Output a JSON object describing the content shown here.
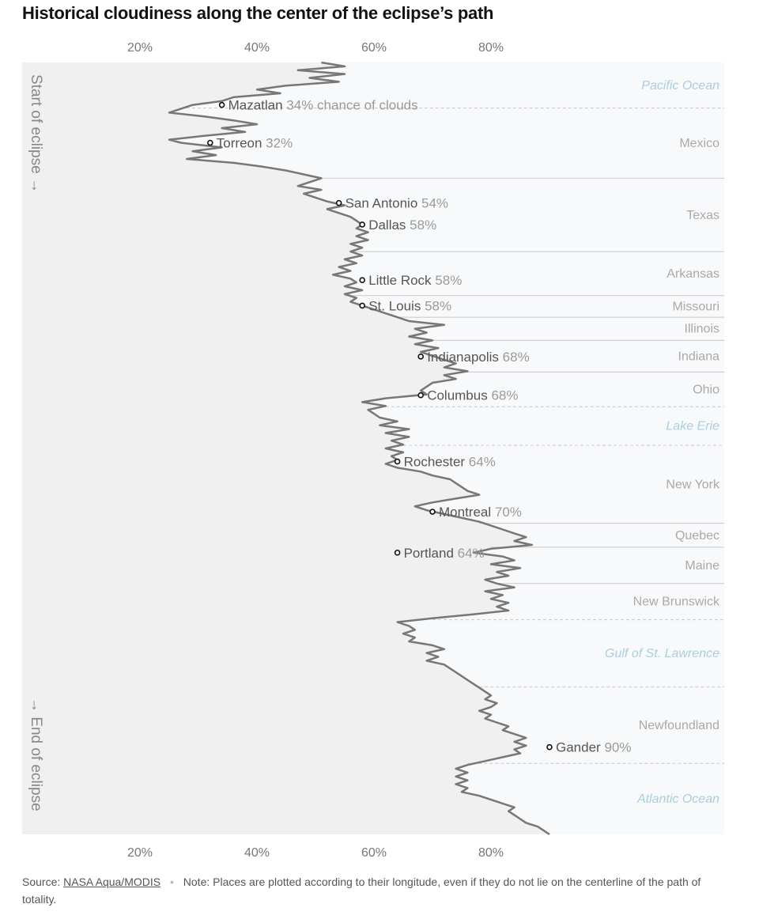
{
  "page": {
    "title": "Historical cloudiness along the center of the eclipse’s path"
  },
  "footer": {
    "source_label": "Source:",
    "source_link": "NASA Aqua/MODIS",
    "separator": "•",
    "note": "Note: Places are plotted according to their longitude, even if they do not lie on the centerline of the path of totality."
  },
  "colors": {
    "land_bg": "#f0f0f0",
    "water_bg": "#f8f9fb",
    "line": "#777777",
    "water_label": "#a9cfdc",
    "land_label": "#a9a9a9",
    "city_name": "#555555",
    "city_value": "#9a9a9a"
  },
  "chart_data": {
    "type": "line",
    "orientation": "vertical",
    "title": "Historical cloudiness along the center of the eclipse’s path",
    "xlabel": "",
    "ylabel": "",
    "xlim": [
      0,
      100
    ],
    "x_ticks": [
      {
        "value": 20,
        "label": "20%"
      },
      {
        "value": 40,
        "label": "40%"
      },
      {
        "value": 60,
        "label": "60%"
      },
      {
        "value": 80,
        "label": "80%"
      }
    ],
    "grid": false,
    "axis_annotations": {
      "start": "Start of eclipse →",
      "end": "→ End of eclipse"
    },
    "regions": [
      {
        "name": "Pacific Ocean",
        "water": true,
        "start": 0,
        "end": 0.059
      },
      {
        "name": "Mexico",
        "water": false,
        "start": 0.059,
        "end": 0.15
      },
      {
        "name": "Texas",
        "water": false,
        "start": 0.15,
        "end": 0.245
      },
      {
        "name": "Arkansas",
        "water": false,
        "start": 0.245,
        "end": 0.302
      },
      {
        "name": "Missouri",
        "water": false,
        "start": 0.302,
        "end": 0.33
      },
      {
        "name": "Illinois",
        "water": false,
        "start": 0.33,
        "end": 0.36
      },
      {
        "name": "Indiana",
        "water": false,
        "start": 0.36,
        "end": 0.401
      },
      {
        "name": "Ohio",
        "water": false,
        "start": 0.401,
        "end": 0.446
      },
      {
        "name": "Lake Erie",
        "water": true,
        "start": 0.446,
        "end": 0.496
      },
      {
        "name": "New York",
        "water": false,
        "start": 0.496,
        "end": 0.597
      },
      {
        "name": "Quebec",
        "water": false,
        "start": 0.597,
        "end": 0.628
      },
      {
        "name": "Maine",
        "water": false,
        "start": 0.628,
        "end": 0.675
      },
      {
        "name": "New Brunswick",
        "water": false,
        "start": 0.675,
        "end": 0.722
      },
      {
        "name": "Gulf of St. Lawrence",
        "water": true,
        "start": 0.722,
        "end": 0.809
      },
      {
        "name": "Newfoundland",
        "water": false,
        "start": 0.809,
        "end": 0.908
      },
      {
        "name": "Atlantic Ocean",
        "water": true,
        "start": 0.908,
        "end": 1.0
      }
    ],
    "cities": [
      {
        "name": "Mazatlan",
        "value": 34,
        "value_label": "34% chance of clouds",
        "pos": 0.055
      },
      {
        "name": "Torreon",
        "value": 32,
        "value_label": "32%",
        "pos": 0.104
      },
      {
        "name": "San Antonio",
        "value": 54,
        "value_label": "54%",
        "pos": 0.182
      },
      {
        "name": "Dallas",
        "value": 58,
        "value_label": "58%",
        "pos": 0.21
      },
      {
        "name": "Little Rock",
        "value": 58,
        "value_label": "58%",
        "pos": 0.282
      },
      {
        "name": "St. Louis",
        "value": 58,
        "value_label": "58%",
        "pos": 0.315
      },
      {
        "name": "Indianapolis",
        "value": 68,
        "value_label": "68%",
        "pos": 0.381
      },
      {
        "name": "Columbus",
        "value": 68,
        "value_label": "68%",
        "pos": 0.431
      },
      {
        "name": "Rochester",
        "value": 64,
        "value_label": "64%",
        "pos": 0.517
      },
      {
        "name": "Montreal",
        "value": 70,
        "value_label": "70%",
        "pos": 0.582
      },
      {
        "name": "Portland",
        "value": 64,
        "value_label": "64%",
        "pos": 0.635
      },
      {
        "name": "Gander",
        "value": 90,
        "value_label": "90%",
        "pos": 0.887
      }
    ],
    "series": [
      {
        "points": [
          [
            0.0,
            51
          ],
          [
            0.005,
            55
          ],
          [
            0.01,
            47
          ],
          [
            0.015,
            55
          ],
          [
            0.02,
            49
          ],
          [
            0.025,
            54
          ],
          [
            0.03,
            45
          ],
          [
            0.035,
            40
          ],
          [
            0.04,
            44
          ],
          [
            0.045,
            36
          ],
          [
            0.05,
            34
          ],
          [
            0.055,
            29
          ],
          [
            0.06,
            27
          ],
          [
            0.065,
            25
          ],
          [
            0.07,
            31
          ],
          [
            0.075,
            36
          ],
          [
            0.08,
            40
          ],
          [
            0.085,
            34
          ],
          [
            0.09,
            38
          ],
          [
            0.095,
            31
          ],
          [
            0.1,
            25
          ],
          [
            0.104,
            27
          ],
          [
            0.11,
            34
          ],
          [
            0.115,
            29
          ],
          [
            0.12,
            33
          ],
          [
            0.125,
            28
          ],
          [
            0.13,
            36
          ],
          [
            0.135,
            41
          ],
          [
            0.14,
            45
          ],
          [
            0.145,
            48
          ],
          [
            0.15,
            51
          ],
          [
            0.155,
            49
          ],
          [
            0.16,
            47
          ],
          [
            0.165,
            51
          ],
          [
            0.17,
            48
          ],
          [
            0.175,
            50
          ],
          [
            0.18,
            52
          ],
          [
            0.185,
            55
          ],
          [
            0.19,
            52
          ],
          [
            0.195,
            54
          ],
          [
            0.2,
            56
          ],
          [
            0.205,
            57
          ],
          [
            0.21,
            58
          ],
          [
            0.215,
            57
          ],
          [
            0.22,
            59
          ],
          [
            0.225,
            57
          ],
          [
            0.23,
            59
          ],
          [
            0.235,
            56
          ],
          [
            0.24,
            58
          ],
          [
            0.245,
            56
          ],
          [
            0.25,
            58
          ],
          [
            0.255,
            55
          ],
          [
            0.26,
            57
          ],
          [
            0.265,
            54
          ],
          [
            0.27,
            56
          ],
          [
            0.275,
            53
          ],
          [
            0.28,
            56
          ],
          [
            0.285,
            57
          ],
          [
            0.29,
            55
          ],
          [
            0.295,
            58
          ],
          [
            0.3,
            55
          ],
          [
            0.305,
            57
          ],
          [
            0.31,
            56
          ],
          [
            0.315,
            58
          ],
          [
            0.32,
            60
          ],
          [
            0.325,
            62
          ],
          [
            0.33,
            64
          ],
          [
            0.335,
            66
          ],
          [
            0.34,
            72
          ],
          [
            0.345,
            67
          ],
          [
            0.35,
            69
          ],
          [
            0.355,
            66
          ],
          [
            0.36,
            70
          ],
          [
            0.365,
            67
          ],
          [
            0.37,
            71
          ],
          [
            0.375,
            68
          ],
          [
            0.38,
            70
          ],
          [
            0.385,
            72
          ],
          [
            0.39,
            74
          ],
          [
            0.395,
            72
          ],
          [
            0.4,
            76
          ],
          [
            0.405,
            72
          ],
          [
            0.41,
            74
          ],
          [
            0.415,
            70
          ],
          [
            0.42,
            69
          ],
          [
            0.425,
            68
          ],
          [
            0.43,
            69
          ],
          [
            0.435,
            62
          ],
          [
            0.44,
            58
          ],
          [
            0.445,
            62
          ],
          [
            0.45,
            59
          ],
          [
            0.455,
            60
          ],
          [
            0.46,
            61
          ],
          [
            0.465,
            64
          ],
          [
            0.47,
            61
          ],
          [
            0.475,
            66
          ],
          [
            0.48,
            62
          ],
          [
            0.485,
            66
          ],
          [
            0.49,
            63
          ],
          [
            0.495,
            65
          ],
          [
            0.5,
            62
          ],
          [
            0.505,
            65
          ],
          [
            0.51,
            63
          ],
          [
            0.515,
            64
          ],
          [
            0.52,
            62
          ],
          [
            0.525,
            64
          ],
          [
            0.53,
            68
          ],
          [
            0.535,
            70
          ],
          [
            0.54,
            73
          ],
          [
            0.545,
            74
          ],
          [
            0.55,
            75
          ],
          [
            0.555,
            76
          ],
          [
            0.56,
            78
          ],
          [
            0.565,
            74
          ],
          [
            0.57,
            70
          ],
          [
            0.575,
            67
          ],
          [
            0.58,
            69
          ],
          [
            0.585,
            72
          ],
          [
            0.59,
            75
          ],
          [
            0.595,
            78
          ],
          [
            0.6,
            80
          ],
          [
            0.605,
            82
          ],
          [
            0.61,
            84
          ],
          [
            0.615,
            86
          ],
          [
            0.62,
            84
          ],
          [
            0.625,
            87
          ],
          [
            0.63,
            80
          ],
          [
            0.635,
            77
          ],
          [
            0.64,
            82
          ],
          [
            0.645,
            84
          ],
          [
            0.65,
            80
          ],
          [
            0.655,
            85
          ],
          [
            0.66,
            81
          ],
          [
            0.665,
            83
          ],
          [
            0.67,
            79
          ],
          [
            0.675,
            81
          ],
          [
            0.68,
            84
          ],
          [
            0.685,
            79
          ],
          [
            0.69,
            82
          ],
          [
            0.695,
            80
          ],
          [
            0.7,
            83
          ],
          [
            0.705,
            81
          ],
          [
            0.71,
            83
          ],
          [
            0.715,
            77
          ],
          [
            0.72,
            70
          ],
          [
            0.725,
            64
          ],
          [
            0.73,
            66
          ],
          [
            0.735,
            67
          ],
          [
            0.74,
            65
          ],
          [
            0.745,
            67
          ],
          [
            0.75,
            66
          ],
          [
            0.755,
            70
          ],
          [
            0.76,
            72
          ],
          [
            0.765,
            69
          ],
          [
            0.77,
            71
          ],
          [
            0.775,
            69
          ],
          [
            0.78,
            72
          ],
          [
            0.785,
            73
          ],
          [
            0.79,
            74
          ],
          [
            0.795,
            75
          ],
          [
            0.8,
            76
          ],
          [
            0.805,
            77
          ],
          [
            0.81,
            78
          ],
          [
            0.815,
            79
          ],
          [
            0.82,
            80
          ],
          [
            0.825,
            79
          ],
          [
            0.83,
            81
          ],
          [
            0.835,
            80
          ],
          [
            0.84,
            78
          ],
          [
            0.845,
            80
          ],
          [
            0.85,
            79
          ],
          [
            0.855,
            81
          ],
          [
            0.86,
            83
          ],
          [
            0.865,
            82
          ],
          [
            0.87,
            84
          ],
          [
            0.875,
            86
          ],
          [
            0.88,
            84
          ],
          [
            0.885,
            86
          ],
          [
            0.89,
            84
          ],
          [
            0.895,
            85
          ],
          [
            0.9,
            82
          ],
          [
            0.905,
            79
          ],
          [
            0.91,
            76
          ],
          [
            0.915,
            74
          ],
          [
            0.92,
            76
          ],
          [
            0.925,
            74
          ],
          [
            0.93,
            76
          ],
          [
            0.935,
            74
          ],
          [
            0.94,
            76
          ],
          [
            0.945,
            75
          ],
          [
            0.95,
            78
          ],
          [
            0.955,
            80
          ],
          [
            0.96,
            82
          ],
          [
            0.965,
            84
          ],
          [
            0.97,
            83
          ],
          [
            0.975,
            84
          ],
          [
            0.98,
            85
          ],
          [
            0.985,
            86
          ],
          [
            0.99,
            88
          ],
          [
            0.995,
            89
          ],
          [
            1.0,
            90
          ]
        ]
      }
    ]
  }
}
